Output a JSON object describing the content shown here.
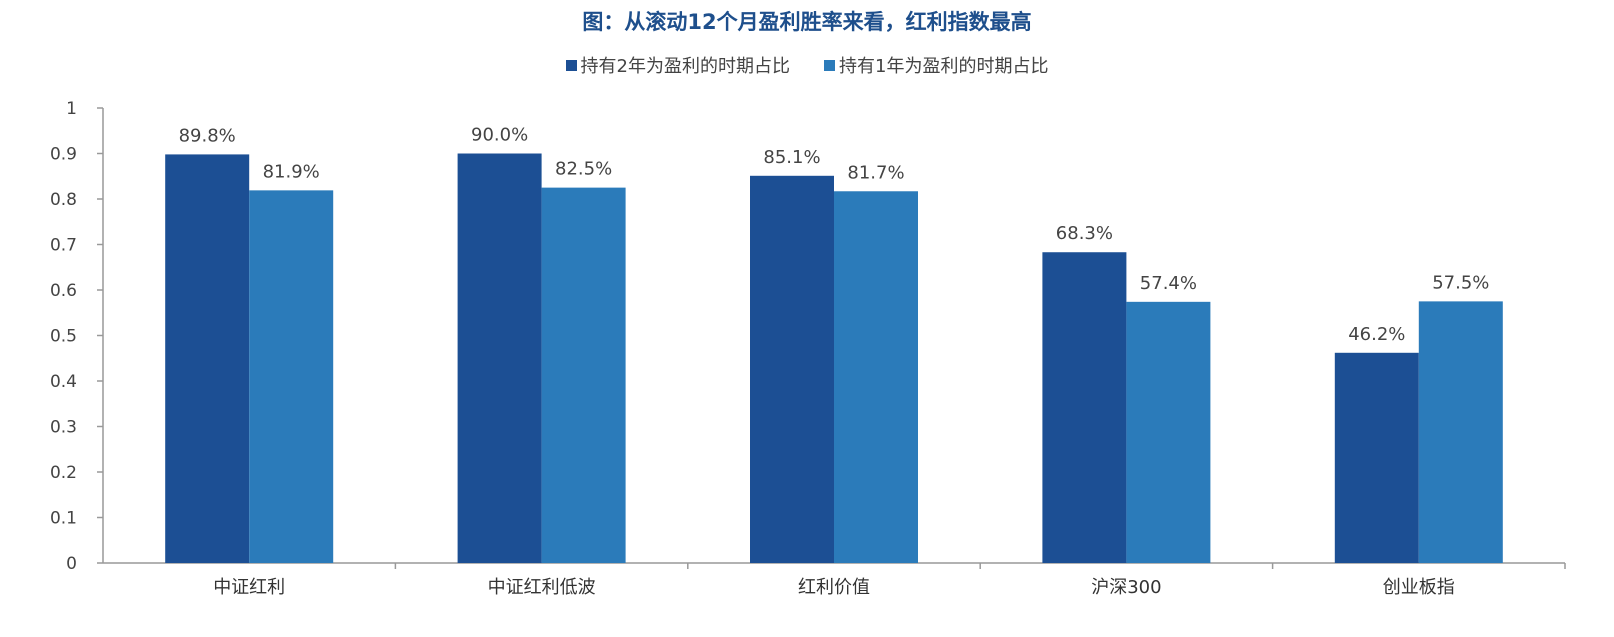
{
  "chart_data": {
    "type": "bar",
    "title": "图：从滚动12个月盈利胜率来看，红利指数最高",
    "categories": [
      "中证红利",
      "中证红利低波",
      "红利价值",
      "沪深300",
      "创业板指"
    ],
    "series": [
      {
        "name": "持有2年为盈利的时期占比",
        "values": [
          0.898,
          0.9,
          0.851,
          0.683,
          0.462
        ],
        "labels": [
          "89.8%",
          "90.0%",
          "85.1%",
          "68.3%",
          "46.2%"
        ],
        "color": "#1c4f94"
      },
      {
        "name": "持有1年为盈利的时期占比",
        "values": [
          0.819,
          0.825,
          0.817,
          0.574,
          0.575
        ],
        "labels": [
          "81.9%",
          "82.5%",
          "81.7%",
          "57.4%",
          "57.5%"
        ],
        "color": "#2b7bba"
      }
    ],
    "ylim": [
      0,
      1
    ],
    "yticks": [
      "0",
      "0.1",
      "0.2",
      "0.3",
      "0.4",
      "0.5",
      "0.6",
      "0.7",
      "0.8",
      "0.9",
      "1"
    ],
    "grid": false,
    "legend": "top"
  }
}
